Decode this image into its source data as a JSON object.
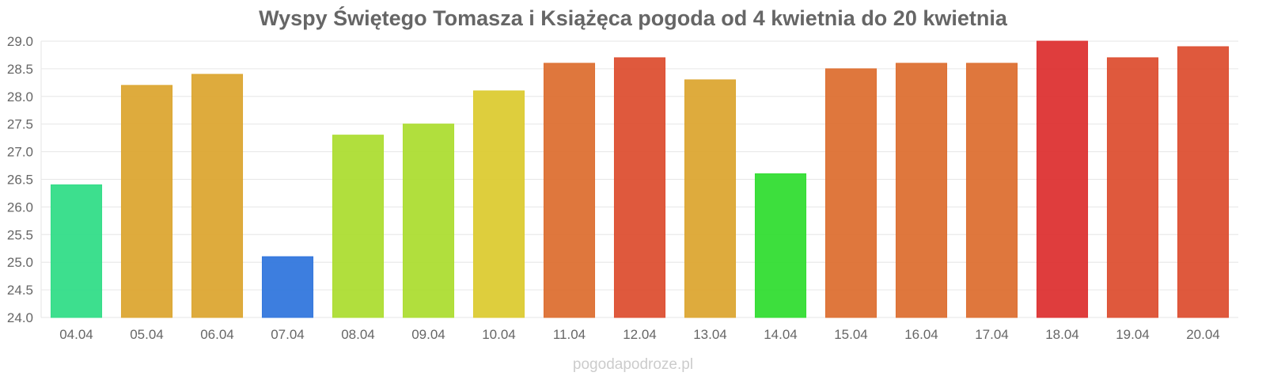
{
  "chart_data": {
    "type": "bar",
    "title": "Wyspy Świętego Tomasza i Książęca pogoda od 4 kwietnia do 20 kwietnia",
    "xlabel": "",
    "ylabel": "",
    "ylim": [
      24.0,
      29.0
    ],
    "yticks": [
      "24.0",
      "24.5",
      "25.0",
      "25.5",
      "26.0",
      "26.5",
      "27.0",
      "27.5",
      "28.0",
      "28.5",
      "29.0"
    ],
    "grid": true,
    "legend": "none",
    "categories": [
      "04.04",
      "05.04",
      "06.04",
      "07.04",
      "08.04",
      "09.04",
      "10.04",
      "11.04",
      "12.04",
      "13.04",
      "14.04",
      "15.04",
      "16.04",
      "17.04",
      "18.04",
      "19.04",
      "20.04"
    ],
    "values": [
      26.4,
      28.2,
      28.4,
      25.1,
      27.3,
      27.5,
      28.1,
      28.6,
      28.7,
      28.3,
      26.6,
      28.5,
      28.6,
      28.6,
      29.0,
      28.7,
      28.9
    ],
    "colors": [
      "#33dd88",
      "#dca733",
      "#dca733",
      "#3377dd",
      "#addd33",
      "#addd33",
      "#dccb33",
      "#dd7033",
      "#dd5033",
      "#dca733",
      "#33dd33",
      "#dd7033",
      "#dd7033",
      "#dd7033",
      "#dd3333",
      "#dd5033",
      "#dd5033"
    ]
  },
  "watermark": "pogodapodroze.pl"
}
